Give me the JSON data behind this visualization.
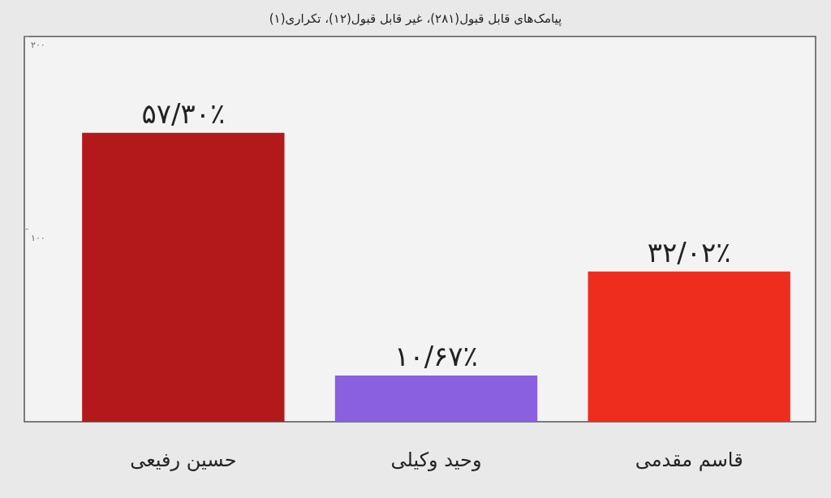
{
  "chart_data": {
    "type": "bar",
    "title": "پیامک‌های قابل قبول(۲۸۱)، غیر قابل قبول(۱۲)، تکراری(۱)",
    "categories": [
      "حسین رفیعی",
      "وحید وکیلی",
      "قاسم مقدمی"
    ],
    "values": [
      150,
      24,
      78
    ],
    "colors": [
      "#b3191b",
      "#8a5fe0",
      "#ee2d1f"
    ],
    "value_labels": [
      "۵۷/۳۰٪",
      "۱۰/۶۷٪",
      "۳۲/۰۲٪"
    ],
    "ylim": [
      0,
      200
    ],
    "yticks": [
      {
        "value": 100,
        "label": "۱۰۰"
      },
      {
        "value": 200,
        "label": "۲۰۰"
      }
    ]
  }
}
